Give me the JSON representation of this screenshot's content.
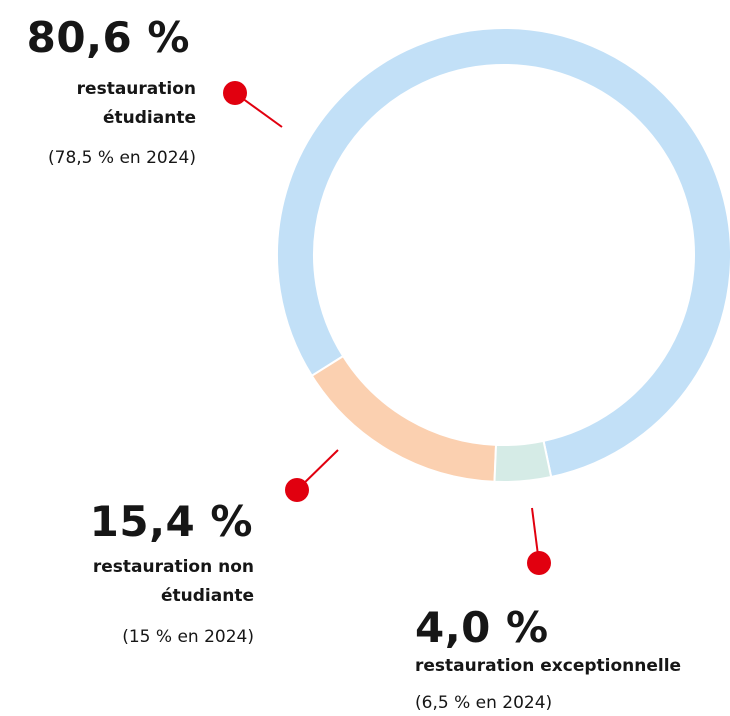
{
  "chart_data": {
    "type": "donut",
    "categories": [
      "restauration étudiante",
      "restauration non étudiante",
      "restauration exceptionnelle"
    ],
    "values": [
      80.6,
      15.4,
      4.0
    ],
    "value_labels": [
      "80,6 %",
      "15,4 %",
      "4,0 %"
    ],
    "notes": [
      "(78,5 % en 2024)",
      "(15 % en 2024)",
      "(6,5 % en 2024)"
    ],
    "colors": [
      "#c2e0f7",
      "#fbd0b0",
      "#d5ebe6"
    ],
    "pointer_color": "#e1000f"
  }
}
